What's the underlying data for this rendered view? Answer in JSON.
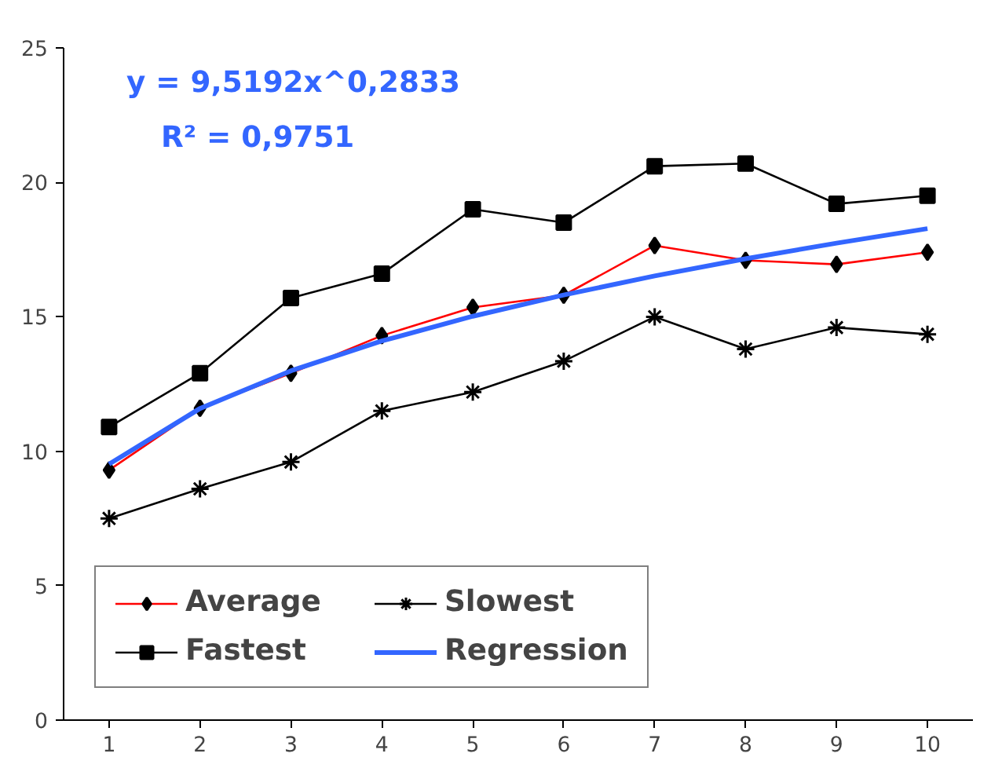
{
  "chart_data": {
    "type": "line",
    "x": [
      1,
      2,
      3,
      4,
      5,
      6,
      7,
      8,
      9,
      10
    ],
    "xlim": [
      0.5,
      10.5
    ],
    "xticks": [
      1,
      2,
      3,
      4,
      5,
      6,
      7,
      8,
      9,
      10
    ],
    "ylim": [
      0,
      25
    ],
    "yticks": [
      0,
      5,
      10,
      15,
      20,
      25
    ],
    "grid": false,
    "legend": "bottom left",
    "annotations": [
      "y = 9,5192x^0,2833",
      "R² = 0,9751"
    ],
    "series": [
      {
        "name": "Average",
        "color": "#ff0000",
        "marker": "diamond",
        "values": [
          9.3,
          11.6,
          12.9,
          14.3,
          15.35,
          15.8,
          17.65,
          17.1,
          16.95,
          17.4
        ]
      },
      {
        "name": "Fastest",
        "color": "#000000",
        "marker": "square",
        "values": [
          10.9,
          12.9,
          15.7,
          16.6,
          19.0,
          18.5,
          20.6,
          20.7,
          19.2,
          19.5
        ]
      },
      {
        "name": "Slowest",
        "color": "#000000",
        "marker": "cross",
        "values": [
          7.5,
          8.6,
          9.6,
          11.5,
          12.2,
          13.35,
          15.0,
          13.8,
          14.6,
          14.35
        ]
      },
      {
        "name": "Regression",
        "color": "#3366ff",
        "marker": "none",
        "values": [
          9.52,
          11.59,
          12.99,
          14.1,
          15.02,
          15.81,
          16.52,
          17.16,
          17.74,
          18.28
        ]
      }
    ]
  }
}
